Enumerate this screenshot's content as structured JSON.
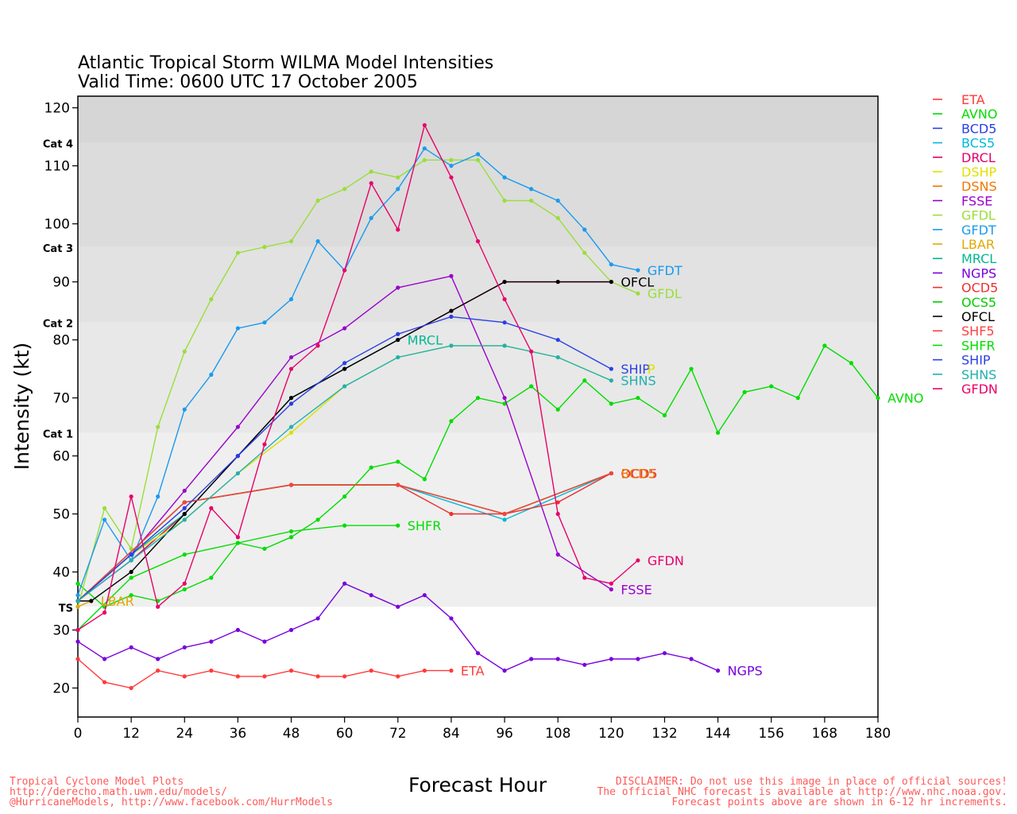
{
  "chart_data": {
    "type": "line",
    "title": "Atlantic Tropical Storm WILMA Model Intensities",
    "subtitle": "Valid Time: 0600 UTC 17 October 2005",
    "xlabel": "Forecast Hour",
    "ylabel": "Intensity (kt)",
    "xlim": [
      0,
      180
    ],
    "ylim": [
      15,
      122
    ],
    "xticks": [
      0,
      12,
      24,
      36,
      48,
      60,
      72,
      84,
      96,
      108,
      120,
      132,
      144,
      156,
      168,
      180
    ],
    "yticks": [
      20,
      30,
      40,
      50,
      60,
      70,
      80,
      90,
      100,
      110,
      120
    ],
    "category_bands": [
      {
        "label": "TS",
        "from": 34,
        "to": 64,
        "color": "#efefef"
      },
      {
        "label": "Cat 1",
        "from": 64,
        "to": 83,
        "color": "#e8e8e8"
      },
      {
        "label": "Cat 2",
        "from": 83,
        "to": 96,
        "color": "#e2e2e2"
      },
      {
        "label": "Cat 3",
        "from": 96,
        "to": 114,
        "color": "#dcdcdc"
      },
      {
        "label": "Cat 4",
        "from": 114,
        "to": 122,
        "color": "#d6d6d6"
      }
    ],
    "legend_position": "right, outside plot",
    "series": [
      {
        "name": "ETA",
        "color": "#ff3a3a",
        "label": "ETA",
        "x": [
          0,
          6,
          12,
          18,
          24,
          30,
          36,
          42,
          48,
          54,
          60,
          66,
          72,
          78,
          84
        ],
        "y": [
          25,
          21,
          20,
          23,
          22,
          23,
          22,
          22,
          23,
          22,
          22,
          23,
          22,
          23,
          23
        ]
      },
      {
        "name": "AVNO",
        "color": "#00dd00",
        "label": "AVNO",
        "x": [
          0,
          6,
          12,
          18,
          24,
          30,
          36,
          42,
          48,
          54,
          60,
          66,
          72,
          78,
          84,
          90,
          96,
          102,
          108,
          114,
          120,
          126,
          132,
          138,
          144,
          150,
          156,
          162,
          168,
          174,
          180
        ],
        "y": [
          38,
          34,
          36,
          35,
          37,
          39,
          45,
          44,
          46,
          49,
          53,
          58,
          59,
          56,
          66,
          70,
          69,
          72,
          68,
          73,
          69,
          70,
          67,
          75,
          64,
          71,
          72,
          70,
          79,
          76,
          70
        ]
      },
      {
        "name": "BCD5",
        "color": "#2a3fe6",
        "label": "",
        "x": [
          0,
          24,
          48,
          72,
          96,
          120
        ],
        "y": [
          35,
          52,
          55,
          55,
          50,
          57
        ]
      },
      {
        "name": "BCS5",
        "color": "#00b8d8",
        "label": "",
        "x": [
          0,
          24,
          48,
          72,
          96,
          120
        ],
        "y": [
          35,
          52,
          55,
          55,
          49,
          57
        ]
      },
      {
        "name": "DRCL",
        "color": "#e0006a",
        "label": "",
        "x": [
          0,
          12,
          24,
          36,
          48,
          60,
          72,
          84,
          96,
          108,
          120
        ],
        "y": [
          35,
          42,
          50,
          60,
          70,
          75,
          80,
          85,
          90,
          90,
          90
        ]
      },
      {
        "name": "DSHP",
        "color": "#e0e000",
        "label": "",
        "x": [
          0,
          12,
          24,
          36,
          48,
          60,
          72,
          84,
          96,
          108,
          120
        ],
        "y": [
          35,
          43,
          49,
          57,
          64,
          72,
          77,
          79,
          79,
          77,
          73
        ]
      },
      {
        "name": "DSNS",
        "color": "#ee7700",
        "label": "",
        "x": [
          0,
          24,
          48,
          72,
          96,
          120
        ],
        "y": [
          35,
          52,
          55,
          55,
          50,
          57
        ]
      },
      {
        "name": "FSSE",
        "color": "#9900cc",
        "label": "FSSE",
        "x": [
          0,
          12,
          24,
          36,
          48,
          60,
          72,
          84,
          96,
          108,
          120
        ],
        "y": [
          35,
          43,
          54,
          65,
          77,
          82,
          89,
          91,
          70,
          43,
          37
        ]
      },
      {
        "name": "GFDL",
        "color": "#9ade3a",
        "label": "GFDL",
        "x": [
          0,
          6,
          12,
          18,
          24,
          30,
          36,
          42,
          48,
          54,
          60,
          66,
          72,
          78,
          84,
          90,
          96,
          102,
          108,
          114,
          120,
          126
        ],
        "y": [
          34,
          51,
          44,
          65,
          78,
          87,
          95,
          96,
          97,
          104,
          106,
          109,
          108,
          111,
          111,
          111,
          104,
          104,
          101,
          95,
          90,
          88
        ]
      },
      {
        "name": "GFDT",
        "color": "#1a9aee",
        "label": "GFDT",
        "x": [
          0,
          6,
          12,
          18,
          24,
          30,
          36,
          42,
          48,
          54,
          60,
          66,
          72,
          78,
          84,
          90,
          96,
          102,
          108,
          114,
          120,
          126
        ],
        "y": [
          36,
          49,
          42,
          53,
          68,
          74,
          82,
          83,
          87,
          97,
          92,
          101,
          106,
          113,
          110,
          112,
          108,
          106,
          104,
          99,
          93,
          92
        ]
      },
      {
        "name": "LBAR",
        "color": "#e0a800",
        "label": "LBAR",
        "x": [
          0,
          3
        ],
        "y": [
          34,
          35
        ]
      },
      {
        "name": "MRCL",
        "color": "#00b890",
        "label": "MRCL",
        "x": [
          0,
          12,
          24,
          36,
          48,
          60,
          72
        ],
        "y": [
          35,
          43,
          50,
          60,
          70,
          75,
          80
        ]
      },
      {
        "name": "NGPS",
        "color": "#7700dd",
        "label": "NGPS",
        "x": [
          0,
          6,
          12,
          18,
          24,
          30,
          36,
          42,
          48,
          54,
          60,
          66,
          72,
          78,
          84,
          90,
          96,
          102,
          108,
          114,
          120,
          126,
          132,
          138,
          144
        ],
        "y": [
          28,
          25,
          27,
          25,
          27,
          28,
          30,
          28,
          30,
          32,
          38,
          36,
          34,
          36,
          32,
          26,
          23,
          25,
          25,
          24,
          25,
          25,
          26,
          25,
          23
        ]
      },
      {
        "name": "OCD5",
        "color": "#ee3030",
        "label": "",
        "x": [
          0,
          24,
          48,
          72,
          84,
          96,
          108,
          120
        ],
        "y": [
          35,
          52,
          55,
          55,
          50,
          50,
          52,
          57
        ]
      },
      {
        "name": "OCS5",
        "color": "#00cc00",
        "label": "",
        "x": [
          0,
          24,
          48,
          72,
          96,
          120
        ],
        "y": [
          35,
          52,
          55,
          55,
          50,
          57
        ]
      },
      {
        "name": "OFCL",
        "color": "#000000",
        "label": "OFCL",
        "x": [
          0,
          3,
          12,
          24,
          36,
          48,
          60,
          72,
          84,
          96,
          108,
          120
        ],
        "y": [
          35,
          35,
          40,
          50,
          60,
          70,
          75,
          80,
          85,
          90,
          90,
          90
        ]
      },
      {
        "name": "SHF5",
        "color": "#ff4040",
        "label": "",
        "x": [
          0,
          24,
          48,
          72,
          96,
          120
        ],
        "y": [
          35,
          52,
          55,
          55,
          50,
          57
        ]
      },
      {
        "name": "SHFR",
        "color": "#00dd00",
        "label": "SHFR",
        "x": [
          0,
          12,
          24,
          36,
          48,
          60,
          72
        ],
        "y": [
          30,
          39,
          43,
          45,
          47,
          48,
          48
        ]
      },
      {
        "name": "SHIP",
        "color": "#2a3fe6",
        "label": "SHIP",
        "x": [
          0,
          12,
          24,
          36,
          48,
          60,
          72,
          84,
          96,
          108,
          120
        ],
        "y": [
          35,
          43,
          51,
          60,
          69,
          76,
          81,
          84,
          83,
          80,
          75
        ]
      },
      {
        "name": "SHNS",
        "color": "#20b0b0",
        "label": "SHNS",
        "x": [
          0,
          12,
          24,
          36,
          48,
          60,
          72,
          84,
          96,
          108,
          120
        ],
        "y": [
          35,
          42,
          49,
          57,
          65,
          72,
          77,
          79,
          79,
          77,
          73
        ]
      },
      {
        "name": "GFDN",
        "color": "#e8006a",
        "label": "GFDN",
        "x": [
          0,
          6,
          12,
          18,
          24,
          30,
          36,
          42,
          48,
          54,
          60,
          66,
          72,
          78,
          84,
          90,
          96,
          102,
          108,
          114,
          120,
          126
        ],
        "y": [
          30,
          33,
          53,
          34,
          38,
          51,
          46,
          62,
          75,
          79,
          92,
          107,
          99,
          117,
          108,
          97,
          87,
          78,
          50,
          39,
          38,
          42
        ]
      }
    ],
    "end_labels": [
      {
        "text": "GFDT",
        "color": "#1a9aee",
        "x": 126,
        "y": 92
      },
      {
        "text": "GFDL",
        "color": "#9ade3a",
        "x": 126,
        "y": 88
      },
      {
        "text": "OFCL",
        "color": "#000000",
        "x": 120,
        "y": 90
      },
      {
        "text": "MRCL",
        "color": "#00b890",
        "x": 72,
        "y": 80
      },
      {
        "text": "SHIP",
        "color": "#2a3fe6",
        "x": 120,
        "y": 75
      },
      {
        "text": "P",
        "color": "#e0e000",
        "x": 126,
        "y": 75
      },
      {
        "text": "SHNS",
        "color": "#20b0b0",
        "x": 120,
        "y": 73
      },
      {
        "text": "AVNO",
        "color": "#00dd00",
        "x": 180,
        "y": 70
      },
      {
        "text": "OCD5",
        "color": "#ee3030",
        "x": 120,
        "y": 57
      },
      {
        "text": "BCD5",
        "color": "#ee7700",
        "x": 120,
        "y": 57
      },
      {
        "text": "SHFR",
        "color": "#00dd00",
        "x": 72,
        "y": 48
      },
      {
        "text": "GFDN",
        "color": "#e8006a",
        "x": 126,
        "y": 42
      },
      {
        "text": "FSSE",
        "color": "#9900cc",
        "x": 120,
        "y": 37
      },
      {
        "text": "LBAR",
        "color": "#e0a800",
        "x": 3,
        "y": 35
      },
      {
        "text": "ETA",
        "color": "#ff3a3a",
        "x": 84,
        "y": 23
      },
      {
        "text": "NGPS",
        "color": "#7700dd",
        "x": 144,
        "y": 23
      }
    ]
  },
  "footer": {
    "left_line1": "Tropical Cyclone Model Plots",
    "left_line2": "http://derecho.math.uwm.edu/models/",
    "left_line3": "@HurricaneModels, http://www.facebook.com/HurrModels",
    "right_line1": "DISCLAIMER: Do not use this image in place of official sources!",
    "right_line2": "The official NHC forecast is available at http://www.nhc.noaa.gov.",
    "right_line3": "Forecast points above are shown in 6-12 hr increments.",
    "color": "#ff5a5a"
  }
}
